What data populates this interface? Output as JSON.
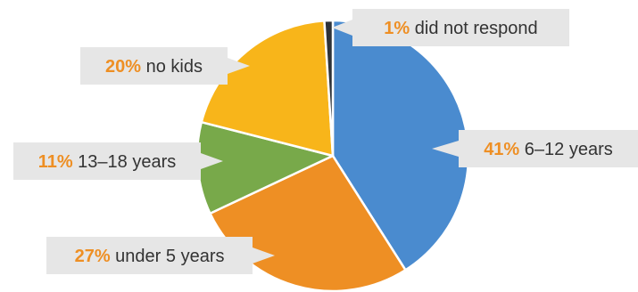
{
  "chart_data": {
    "type": "pie",
    "slices": [
      {
        "label": "6–12 years",
        "value": 41,
        "percent_label": "41%",
        "color": "#4A8BCF"
      },
      {
        "label": "under 5 years",
        "value": 27,
        "percent_label": "27%",
        "color": "#EE8F24"
      },
      {
        "label": "13–18 years",
        "value": 11,
        "percent_label": "11%",
        "color": "#78A94A"
      },
      {
        "label": "no kids",
        "value": 20,
        "percent_label": "20%",
        "color": "#F8B51A"
      },
      {
        "label": "did not respond",
        "value": 1,
        "percent_label": "1%",
        "color": "#2E3238"
      }
    ],
    "colors": {
      "callout_background": "#E6E6E6",
      "percent_text": "#EE8F24",
      "label_text": "#333333"
    },
    "start_angle_degrees": 0,
    "direction": "clockwise"
  }
}
